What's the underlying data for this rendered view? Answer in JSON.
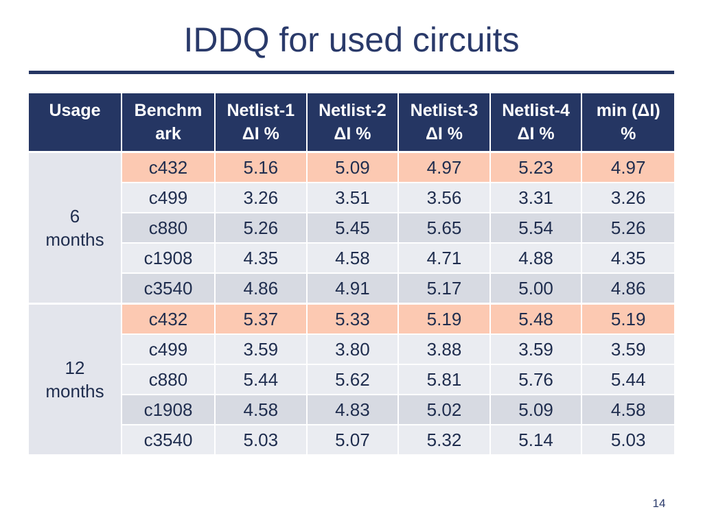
{
  "slide": {
    "title": "IDDQ for used circuits",
    "page_number": "14"
  },
  "table": {
    "headers": [
      {
        "line1": "Usage",
        "line2": ""
      },
      {
        "line1": "Benchm",
        "line2": "ark"
      },
      {
        "line1": "Netlist-1",
        "line2": "ΔI %"
      },
      {
        "line1": "Netlist-2",
        "line2": "ΔI %"
      },
      {
        "line1": "Netlist-3",
        "line2": "ΔI %"
      },
      {
        "line1": "Netlist-4",
        "line2": "ΔI %"
      },
      {
        "line1": "min (ΔI)",
        "line2": "%"
      }
    ],
    "groups": [
      {
        "usage_line1": "6",
        "usage_line2": "months",
        "rows": [
          {
            "benchmark": "c432",
            "n1": "5.16",
            "n2": "5.09",
            "n3": "4.97",
            "n4": "5.23",
            "min": "4.97"
          },
          {
            "benchmark": "c499",
            "n1": "3.26",
            "n2": "3.51",
            "n3": "3.56",
            "n4": "3.31",
            "min": "3.26"
          },
          {
            "benchmark": "c880",
            "n1": "5.26",
            "n2": "5.45",
            "n3": "5.65",
            "n4": "5.54",
            "min": "5.26"
          },
          {
            "benchmark": "c1908",
            "n1": "4.35",
            "n2": "4.58",
            "n3": "4.71",
            "n4": "4.88",
            "min": "4.35"
          },
          {
            "benchmark": "c3540",
            "n1": "4.86",
            "n2": "4.91",
            "n3": "5.17",
            "n4": "5.00",
            "min": "4.86"
          }
        ]
      },
      {
        "usage_line1": "12",
        "usage_line2": "months",
        "rows": [
          {
            "benchmark": "c432",
            "n1": "5.37",
            "n2": "5.33",
            "n3": "5.19",
            "n4": "5.48",
            "min": "5.19"
          },
          {
            "benchmark": "c499",
            "n1": "3.59",
            "n2": "3.80",
            "n3": "3.88",
            "n4": "3.59",
            "min": "3.59"
          },
          {
            "benchmark": "c880",
            "n1": "5.44",
            "n2": "5.62",
            "n3": "5.81",
            "n4": "5.76",
            "min": "5.44"
          },
          {
            "benchmark": "c1908",
            "n1": "4.58",
            "n2": "4.83",
            "n3": "5.02",
            "n4": "5.09",
            "min": "4.58"
          },
          {
            "benchmark": "c3540",
            "n1": "5.03",
            "n2": "5.07",
            "n3": "5.32",
            "n4": "5.14",
            "min": "5.03"
          }
        ]
      }
    ]
  },
  "colors": {
    "header_bg": "#253663",
    "highlight_row": "#fcc9b2",
    "light_row": "#eaecf1",
    "dark_row": "#d7dae2",
    "usage_cell": "#e3e5ec"
  }
}
